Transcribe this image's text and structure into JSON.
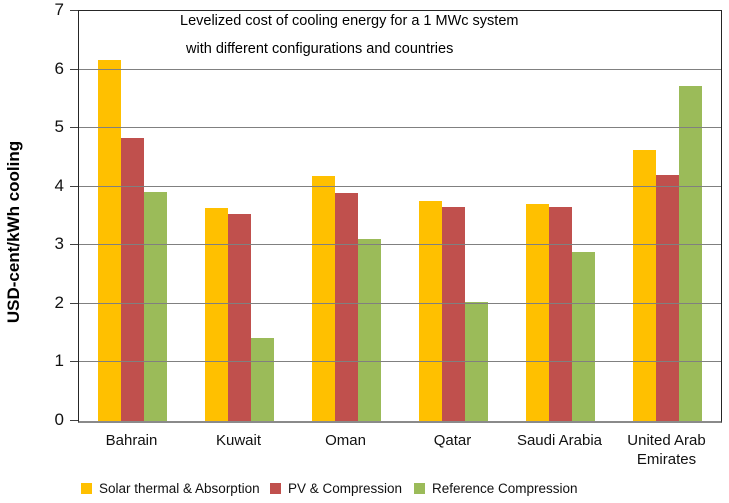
{
  "chart_data": {
    "type": "bar",
    "title_lines": [
      "Levelized cost of cooling energy for a 1 MWc system",
      "with different configurations and countries"
    ],
    "ylabel": "USD-cent/kWh cooling",
    "xlabel": "",
    "categories": [
      "Bahrain",
      "Kuwait",
      "Oman",
      "Qatar",
      "Saudi Arabia",
      "United Arab Emirates"
    ],
    "series": [
      {
        "name": "Solar thermal & Absorption",
        "color": "#FFC000",
        "values": [
          6.17,
          3.63,
          4.18,
          3.75,
          3.7,
          4.63
        ]
      },
      {
        "name": "PV & Compression",
        "color": "#C0504D",
        "values": [
          4.84,
          3.54,
          3.89,
          3.65,
          3.65,
          4.2
        ]
      },
      {
        "name": "Reference Compression",
        "color": "#9BBB59",
        "values": [
          3.91,
          1.42,
          3.1,
          2.04,
          2.88,
          5.72
        ]
      }
    ],
    "ylim": [
      0,
      7
    ],
    "yticks": [
      0,
      1,
      2,
      3,
      4,
      5,
      6,
      7
    ],
    "grid": true,
    "legend_position": "bottom",
    "gridline_color": "#808080",
    "background_color": "#FFFFFF"
  }
}
